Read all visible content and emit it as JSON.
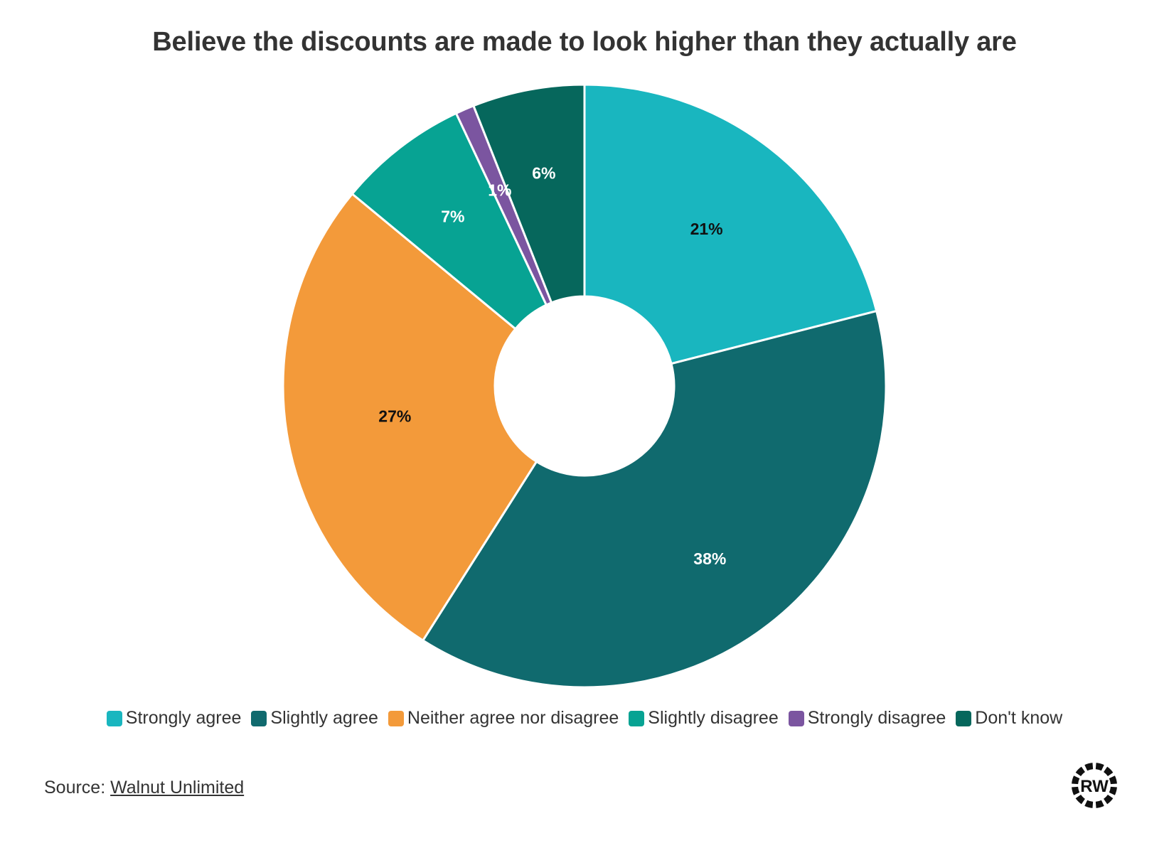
{
  "title": "Believe the discounts are made to look higher than they actually are",
  "chart_data": {
    "type": "pie",
    "title": "Believe the discounts are made to look higher than they actually are",
    "donut": true,
    "start_angle_deg": 0,
    "direction": "clockwise",
    "series": [
      {
        "name": "Strongly agree",
        "value": 21,
        "label": "21%",
        "color": "#19b6bf",
        "label_color": "#111111"
      },
      {
        "name": "Slightly agree",
        "value": 38,
        "label": "38%",
        "color": "#106a6e",
        "label_color": "#ffffff"
      },
      {
        "name": "Neither agree nor disagree",
        "value": 27,
        "label": "27%",
        "color": "#f39a3a",
        "label_color": "#111111"
      },
      {
        "name": "Slightly disagree",
        "value": 7,
        "label": "7%",
        "color": "#07a393",
        "label_color": "#ffffff"
      },
      {
        "name": "Strongly disagree",
        "value": 1,
        "label": "1%",
        "color": "#7b55a0",
        "label_color": "#ffffff"
      },
      {
        "name": "Don't know",
        "value": 6,
        "label": "6%",
        "color": "#06675c",
        "label_color": "#ffffff"
      }
    ],
    "legend_position": "bottom"
  },
  "source": {
    "prefix": "Source: ",
    "link_text": "Walnut Unlimited"
  },
  "logo": {
    "text": "RW",
    "icon": "rw-badge-icon"
  }
}
